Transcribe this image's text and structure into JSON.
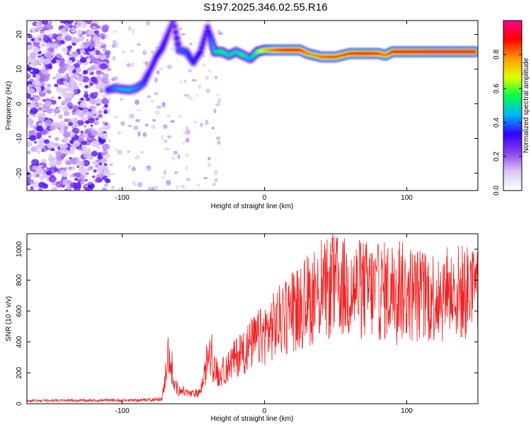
{
  "figure": {
    "title": "S197.2025.346.02.55.R16"
  },
  "chart_data": [
    {
      "type": "heatmap",
      "xlabel": "Height of straight line (km)",
      "ylabel": "Frequency (Hz)",
      "xlim": [
        -167,
        150
      ],
      "ylim": [
        -25,
        24
      ],
      "x_ticks": [
        -100,
        0,
        100
      ],
      "y_ticks": [
        -20,
        -10,
        0,
        10,
        20
      ],
      "colorbar": {
        "label": "Normalized spectral amplitude",
        "range": [
          0,
          1
        ],
        "ticks": [
          "0.0",
          "0.2",
          "0.4",
          "0.6",
          "0.8"
        ],
        "tick_values": [
          0.0,
          0.2,
          0.4,
          0.6,
          0.8
        ],
        "stops": [
          "#ffffff",
          "#dcc8f5",
          "#8a40ee",
          "#3300ff",
          "#00b5ff",
          "#00ff4a",
          "#e0ff00",
          "#ff9a00",
          "#ff0000",
          "#ff0090"
        ]
      },
      "ridge": [
        {
          "x": -110,
          "f": 4.0,
          "a": 0.35
        },
        {
          "x": -105,
          "f": 4.5,
          "a": 0.42
        },
        {
          "x": -100,
          "f": 4.2,
          "a": 0.45
        },
        {
          "x": -95,
          "f": 4.0,
          "a": 0.45
        },
        {
          "x": -90,
          "f": 4.5,
          "a": 0.42
        },
        {
          "x": -85,
          "f": 6.0,
          "a": 0.38
        },
        {
          "x": -80,
          "f": 10.0,
          "a": 0.3
        },
        {
          "x": -76,
          "f": 13.5,
          "a": 0.32
        },
        {
          "x": -72,
          "f": 16.0,
          "a": 0.35
        },
        {
          "x": -68,
          "f": 20.0,
          "a": 0.3
        },
        {
          "x": -64,
          "f": 24.0,
          "a": 0.25
        },
        {
          "x": -60,
          "f": 15.5,
          "a": 0.4
        },
        {
          "x": -55,
          "f": 15.0,
          "a": 0.38
        },
        {
          "x": -50,
          "f": 12.0,
          "a": 0.35
        },
        {
          "x": -45,
          "f": 15.0,
          "a": 0.33
        },
        {
          "x": -40,
          "f": 22.0,
          "a": 0.3
        },
        {
          "x": -35,
          "f": 15.0,
          "a": 0.5
        },
        {
          "x": -30,
          "f": 15.0,
          "a": 0.55
        },
        {
          "x": -25,
          "f": 14.0,
          "a": 0.5
        },
        {
          "x": -20,
          "f": 15.0,
          "a": 0.5
        },
        {
          "x": -15,
          "f": 14.0,
          "a": 0.55
        },
        {
          "x": -10,
          "f": 13.0,
          "a": 0.45
        },
        {
          "x": -5,
          "f": 15.0,
          "a": 0.6
        },
        {
          "x": 0,
          "f": 15.5,
          "a": 0.72
        },
        {
          "x": 5,
          "f": 15.5,
          "a": 0.8
        },
        {
          "x": 10,
          "f": 15.5,
          "a": 0.85
        },
        {
          "x": 15,
          "f": 15.5,
          "a": 0.88
        },
        {
          "x": 20,
          "f": 15.5,
          "a": 0.9
        },
        {
          "x": 25,
          "f": 15.5,
          "a": 0.88
        },
        {
          "x": 30,
          "f": 14.5,
          "a": 0.8
        },
        {
          "x": 35,
          "f": 14.0,
          "a": 0.78
        },
        {
          "x": 40,
          "f": 13.5,
          "a": 0.82
        },
        {
          "x": 45,
          "f": 13.5,
          "a": 0.84
        },
        {
          "x": 50,
          "f": 13.5,
          "a": 0.85
        },
        {
          "x": 55,
          "f": 14.0,
          "a": 0.84
        },
        {
          "x": 60,
          "f": 14.5,
          "a": 0.86
        },
        {
          "x": 65,
          "f": 14.5,
          "a": 0.88
        },
        {
          "x": 70,
          "f": 14.5,
          "a": 0.88
        },
        {
          "x": 75,
          "f": 14.5,
          "a": 0.88
        },
        {
          "x": 80,
          "f": 14.5,
          "a": 0.86
        },
        {
          "x": 85,
          "f": 14.0,
          "a": 0.8
        },
        {
          "x": 90,
          "f": 15.0,
          "a": 0.88
        },
        {
          "x": 95,
          "f": 15.0,
          "a": 0.9
        },
        {
          "x": 100,
          "f": 15.0,
          "a": 0.92
        },
        {
          "x": 105,
          "f": 15.0,
          "a": 0.92
        },
        {
          "x": 110,
          "f": 15.0,
          "a": 0.9
        },
        {
          "x": 115,
          "f": 15.0,
          "a": 0.95
        },
        {
          "x": 120,
          "f": 15.0,
          "a": 0.95
        },
        {
          "x": 125,
          "f": 15.0,
          "a": 0.95
        },
        {
          "x": 130,
          "f": 15.0,
          "a": 0.95
        },
        {
          "x": 135,
          "f": 15.0,
          "a": 0.95
        },
        {
          "x": 140,
          "f": 15.0,
          "a": 0.95
        },
        {
          "x": 145,
          "f": 15.0,
          "a": 0.95
        },
        {
          "x": 148,
          "f": 15.0,
          "a": 0.95
        }
      ],
      "background_noise": {
        "x_from": -167,
        "x_to": -110,
        "amp_min": 0.1,
        "amp_max": 0.32
      }
    },
    {
      "type": "line",
      "xlabel": "Height of straight line (km)",
      "ylabel": "SNR (10 * v/v)",
      "xlim": [
        -167,
        150
      ],
      "ylim": [
        0,
        1100
      ],
      "x_ticks": [
        -100,
        0,
        100
      ],
      "y_ticks": [
        0,
        200,
        400,
        600,
        800,
        1000
      ],
      "series": [
        {
          "color": "#ee2222",
          "envelope_x": [
            -167,
            -90,
            -72,
            -70,
            -68,
            -66,
            -64,
            -60,
            -55,
            -50,
            -45,
            -42,
            -40,
            -36,
            -32,
            -28,
            -20,
            -10,
            0,
            10,
            20,
            30,
            40,
            50,
            60,
            70,
            80,
            90,
            100,
            110,
            120,
            130,
            140,
            150
          ],
          "envelope_y": [
            20,
            22,
            30,
            150,
            330,
            250,
            120,
            90,
            70,
            60,
            80,
            180,
            320,
            250,
            180,
            220,
            300,
            380,
            450,
            530,
            600,
            660,
            720,
            760,
            740,
            740,
            720,
            740,
            720,
            700,
            700,
            720,
            720,
            720
          ],
          "peaks": [
            {
              "x": -68,
              "y": 370
            },
            {
              "x": -65,
              "y": 340
            },
            {
              "x": -37,
              "y": 450
            },
            {
              "x": 20,
              "y": 850
            },
            {
              "x": 30,
              "y": 960
            },
            {
              "x": 40,
              "y": 1060
            },
            {
              "x": 48,
              "y": 1100
            },
            {
              "x": 90,
              "y": 940
            },
            {
              "x": 95,
              "y": 1050
            },
            {
              "x": 93,
              "y": 380
            },
            {
              "x": 110,
              "y": 920
            },
            {
              "x": 148,
              "y": 880
            }
          ]
        }
      ]
    }
  ]
}
